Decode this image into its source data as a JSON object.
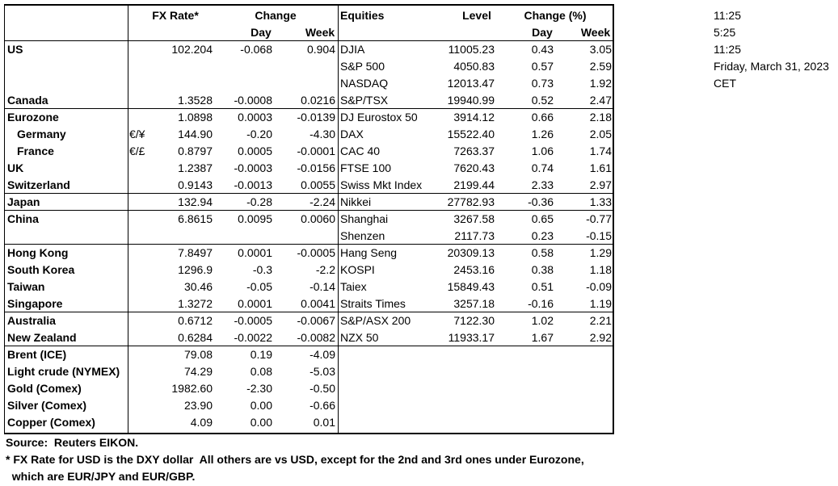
{
  "header": {
    "fx_rate": "FX Rate*",
    "change": "Change",
    "day": "Day",
    "week": "Week",
    "equities": "Equities",
    "level": "Level",
    "change_pct": "Change (%)",
    "eq_day": "Day",
    "eq_week": "Week"
  },
  "table": {
    "rows": [
      [
        "US",
        null,
        "102.204",
        "-0.068",
        "0.904",
        "DJIA",
        "11005.23",
        "0.43",
        "3.05"
      ],
      [
        null,
        null,
        null,
        null,
        null,
        "S&P 500",
        "4050.83",
        "0.57",
        "2.59"
      ],
      [
        null,
        null,
        null,
        null,
        null,
        "NASDAQ",
        "12013.47",
        "0.73",
        "1.92"
      ],
      [
        "Canada",
        null,
        "1.3528",
        "-0.0008",
        "0.0216",
        "S&P/TSX",
        "19940.99",
        "0.52",
        "2.47"
      ],
      [
        "Eurozone",
        null,
        "1.0898",
        "0.0003",
        "-0.0139",
        "DJ Eurostox 50",
        "3914.12",
        "0.66",
        "2.18"
      ],
      [
        "Germany",
        "€/¥",
        "144.90",
        "-0.20",
        "-4.30",
        "DAX",
        "15522.40",
        "1.26",
        "2.05"
      ],
      [
        "France",
        "€/£",
        "0.8797",
        "0.0005",
        "-0.0001",
        "CAC 40",
        "7263.37",
        "1.06",
        "1.74"
      ],
      [
        "UK",
        null,
        "1.2387",
        "-0.0003",
        "-0.0156",
        "FTSE 100",
        "7620.43",
        "0.74",
        "1.61"
      ],
      [
        "Switzerland",
        null,
        "0.9143",
        "-0.0013",
        "0.0055",
        "Swiss Mkt Index",
        "2199.44",
        "2.33",
        "2.97"
      ],
      [
        "Japan",
        null,
        "132.94",
        "-0.28",
        "-2.24",
        "Nikkei",
        "27782.93",
        "-0.36",
        "1.33"
      ],
      [
        "China",
        null,
        "6.8615",
        "0.0095",
        "0.0060",
        "Shanghai",
        "3267.58",
        "0.65",
        "-0.77"
      ],
      [
        null,
        null,
        null,
        null,
        null,
        "Shenzen",
        "2117.73",
        "0.23",
        "-0.15"
      ],
      [
        "Hong Kong",
        null,
        "7.8497",
        "0.0001",
        "-0.0005",
        "Hang Seng",
        "20309.13",
        "0.58",
        "1.29"
      ],
      [
        "South Korea",
        null,
        "1296.9",
        "-0.3",
        "-2.2",
        "KOSPI",
        "2453.16",
        "0.38",
        "1.18"
      ],
      [
        "Taiwan",
        null,
        "30.46",
        "-0.05",
        "-0.14",
        "Taiex",
        "15849.43",
        "0.51",
        "-0.09"
      ],
      [
        "Singapore",
        null,
        "1.3272",
        "0.0001",
        "0.0041",
        "Straits Times",
        "3257.18",
        "-0.16",
        "1.19"
      ],
      [
        "Australia",
        null,
        "0.6712",
        "-0.0005",
        "-0.0067",
        "S&P/ASX  200",
        "7122.30",
        "1.02",
        "2.21"
      ],
      [
        "New Zealand",
        null,
        "0.6284",
        "-0.0022",
        "-0.0082",
        "NZX 50",
        "11933.17",
        "1.67",
        "2.92"
      ],
      [
        "Brent (ICE)",
        null,
        "79.08",
        "0.19",
        "-4.09",
        null,
        null,
        null,
        null
      ],
      [
        "Light crude (NYMEX)",
        null,
        "74.29",
        "0.08",
        "-5.03",
        null,
        null,
        null,
        null
      ],
      [
        "Gold (Comex)",
        null,
        "1982.60",
        "-2.30",
        "-0.50",
        null,
        null,
        null,
        null
      ],
      [
        "Silver (Comex)",
        null,
        "23.90",
        "0.00",
        "-0.66",
        null,
        null,
        null,
        null
      ],
      [
        "Copper (Comex)",
        null,
        "4.09",
        "0.00",
        "0.01",
        null,
        null,
        null,
        null
      ]
    ]
  },
  "times": [
    "11:25",
    "5:25",
    "11:25",
    "Friday, March 31, 2023",
    "CET"
  ],
  "footnotes": [
    "Source:  Reuters EIKON.",
    "* FX Rate for USD is the DXY dollar  All others are vs USD, except for the 2nd and 3rd ones under Eurozone,",
    "  which are EUR/JPY and EUR/GBP."
  ]
}
